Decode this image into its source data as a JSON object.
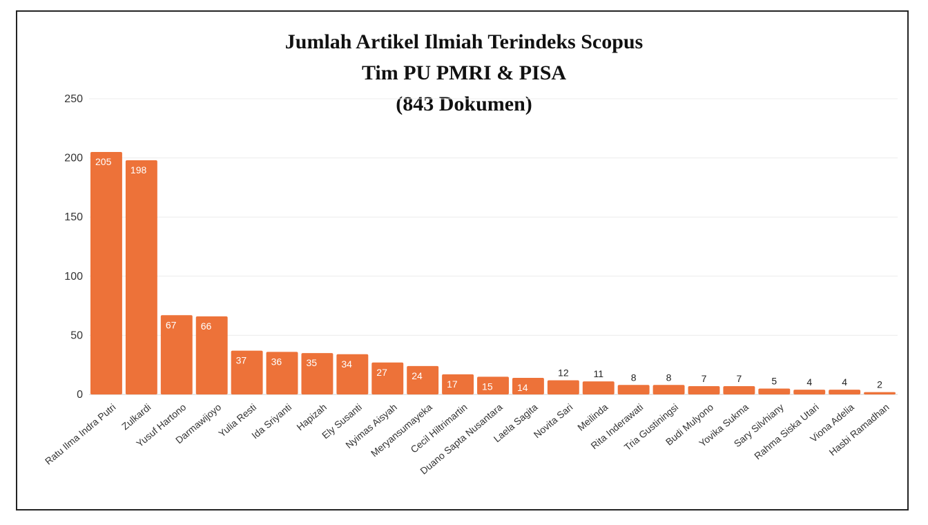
{
  "chart_data": {
    "type": "bar",
    "title": "Jumlah Artikel Ilmiah Terindeks Scopus",
    "subtitle": "Tim PU PMRI & PISA",
    "subtitle2": "(843 Dokumen)",
    "xlabel": "",
    "ylabel": "",
    "ylim": [
      0,
      250
    ],
    "yticks": [
      0,
      50,
      100,
      150,
      200,
      250
    ],
    "grid": true,
    "bar_color": "#ED7239",
    "categories": [
      "Ratu Ilma Indra Putri",
      "Zulkardi",
      "Yusuf Hartono",
      "Darmawijoyo",
      "Yulia Resti",
      "Ida Sriyanti",
      "Hapizah",
      "Ely Susanti",
      "Nyimas Aisyah",
      "Meryansumayeka",
      "Cecil Hiltrimartin",
      "Duano Sapta Nusantara",
      "Laela Sagita",
      "Novita Sari",
      "Meilinda",
      "Rita Inderawati",
      "Tria Gustiningsi",
      "Budi Mulyono",
      "Yovika Sukma",
      "Sary Silvhiany",
      "Rahma Siska Utari",
      "Viona Adelia",
      "Hasbi Ramadhan"
    ],
    "values": [
      205,
      198,
      67,
      66,
      37,
      36,
      35,
      34,
      27,
      24,
      17,
      15,
      14,
      12,
      11,
      8,
      8,
      7,
      7,
      5,
      4,
      4,
      2
    ],
    "value_labels": [
      "205",
      "198",
      "67",
      "66",
      "37",
      "36",
      "35",
      "34",
      "27",
      "24",
      "17",
      "15",
      "14",
      "12",
      "11",
      "8",
      "8",
      "7",
      "7",
      "5",
      "4",
      "4",
      "2"
    ]
  }
}
